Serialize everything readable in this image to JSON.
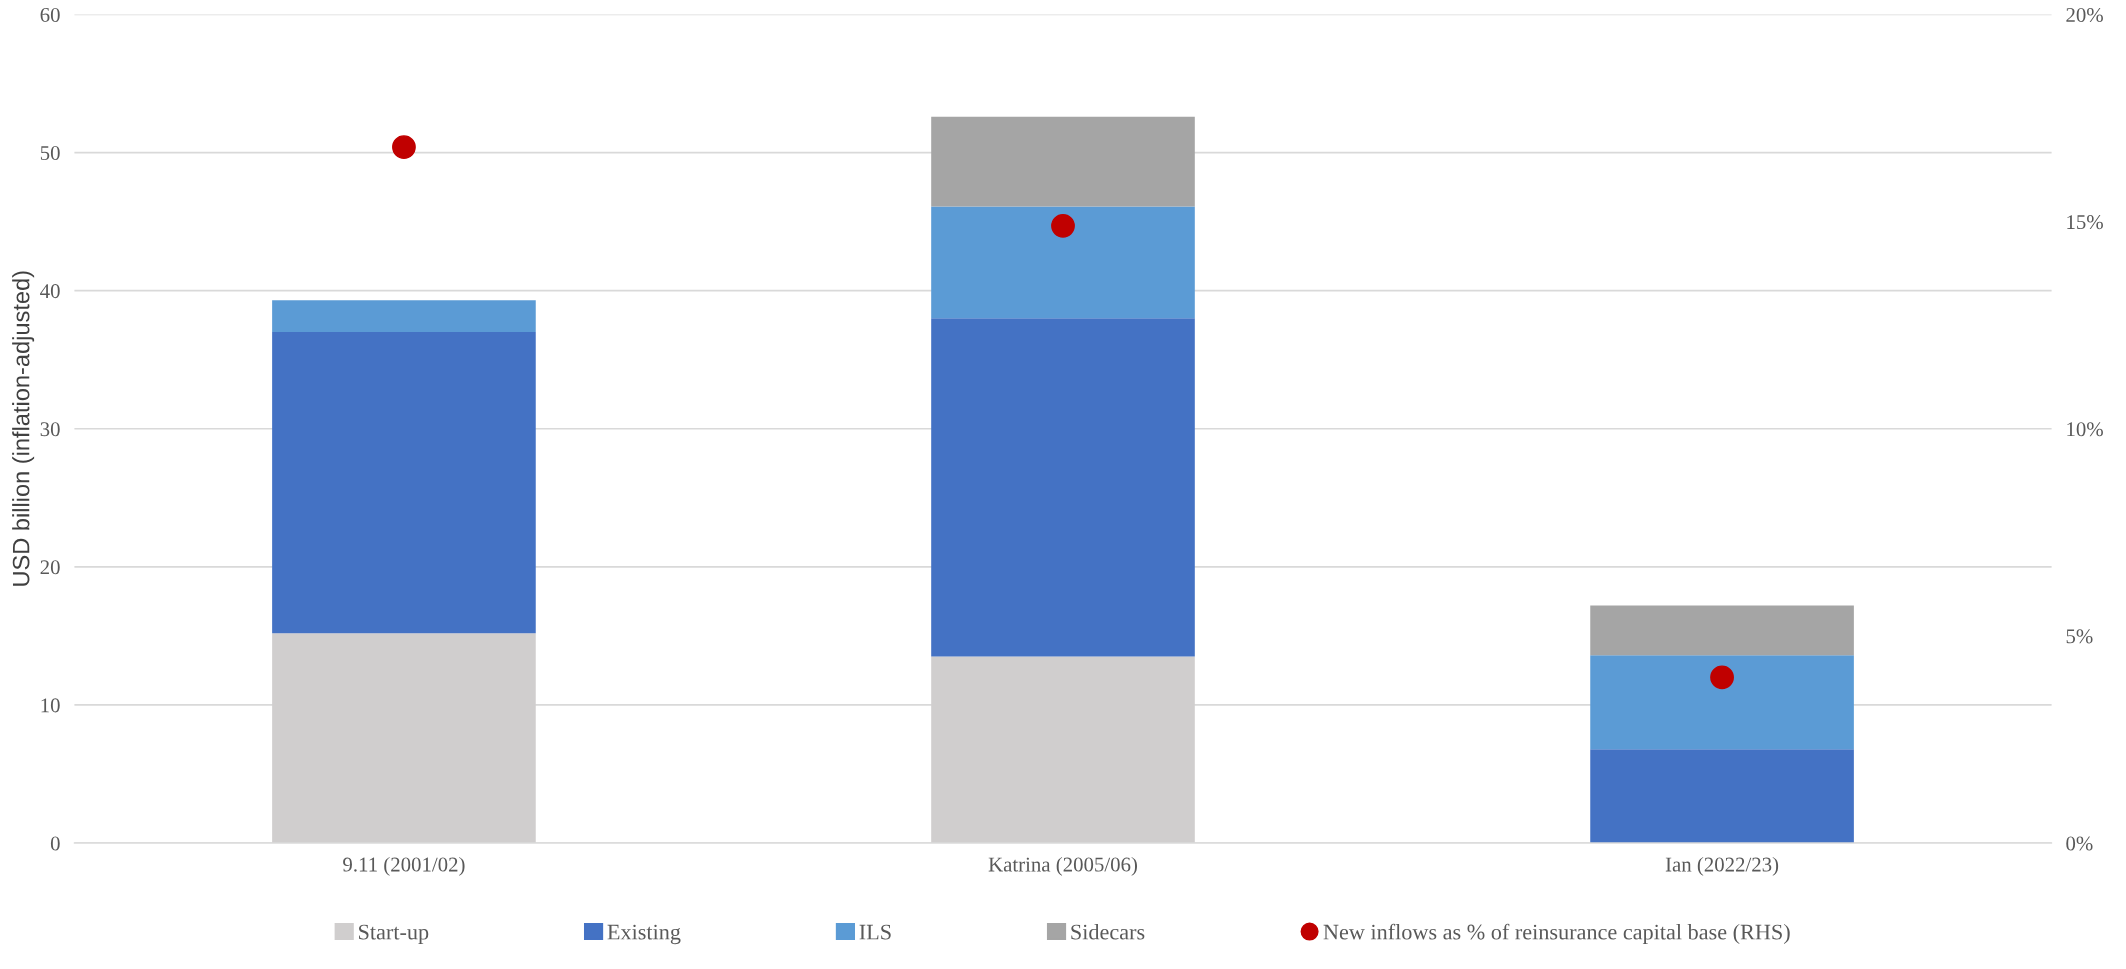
{
  "chart_data": {
    "type": "bar",
    "stacked": true,
    "ylabel": "USD billion (inflation-adjusted)",
    "categories": [
      "9.11 (2001/02)",
      "Katrina (2005/06)",
      "Ian (2022/23)"
    ],
    "series": [
      {
        "name": "Start-up",
        "color": "#d0cece",
        "values": [
          15.2,
          13.5,
          0
        ]
      },
      {
        "name": "Existing",
        "color": "#4472c4",
        "values": [
          21.8,
          24.5,
          6.8
        ]
      },
      {
        "name": "ILS",
        "color": "#5b9bd5",
        "values": [
          2.3,
          8.1,
          6.8
        ]
      },
      {
        "name": "Sidecars",
        "color": "#a5a5a5",
        "values": [
          0,
          6.5,
          3.6
        ]
      },
      {
        "name": "New inflows as % of reinsurance capital base (RHS)",
        "type": "scatter",
        "axis": "y2",
        "color": "#c00000",
        "marker": "circle",
        "values": [
          16.8,
          14.9,
          4.0
        ]
      }
    ],
    "ylim": [
      0,
      60
    ],
    "yticks": [
      0,
      10,
      20,
      30,
      40,
      50,
      60
    ],
    "y2lim": [
      0,
      20
    ],
    "y2ticks": [
      {
        "value": 0,
        "label": "0%"
      },
      {
        "value": 5,
        "label": "5%"
      },
      {
        "value": 10,
        "label": "10%"
      },
      {
        "value": 15,
        "label": "15%"
      },
      {
        "value": 20,
        "label": "20%"
      }
    ],
    "grid": "y",
    "legend": "bottom"
  }
}
